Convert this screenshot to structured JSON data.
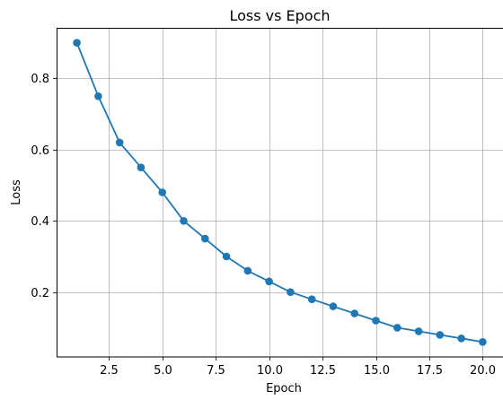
{
  "chart_data": {
    "type": "line",
    "title": "Loss vs Epoch",
    "xlabel": "Epoch",
    "ylabel": "Loss",
    "xlim": [
      0.05,
      20.95
    ],
    "ylim": [
      0.018,
      0.942
    ],
    "xticks": [
      2.5,
      5.0,
      7.5,
      10.0,
      12.5,
      15.0,
      17.5,
      20.0
    ],
    "xtick_labels": [
      "2.5",
      "5.0",
      "7.5",
      "10.0",
      "12.5",
      "15.0",
      "17.5",
      "20.0"
    ],
    "yticks": [
      0.2,
      0.4,
      0.6,
      0.8
    ],
    "ytick_labels": [
      "0.2",
      "0.4",
      "0.6",
      "0.8"
    ],
    "grid": true,
    "series": [
      {
        "color": "#1f77b4",
        "marker": "circle",
        "x": [
          1,
          2,
          3,
          4,
          5,
          6,
          7,
          8,
          9,
          10,
          11,
          12,
          13,
          14,
          15,
          16,
          17,
          18,
          19,
          20
        ],
        "y": [
          0.9,
          0.75,
          0.62,
          0.55,
          0.48,
          0.4,
          0.35,
          0.3,
          0.26,
          0.23,
          0.2,
          0.18,
          0.16,
          0.14,
          0.12,
          0.1,
          0.09,
          0.08,
          0.07,
          0.06
        ]
      }
    ]
  }
}
